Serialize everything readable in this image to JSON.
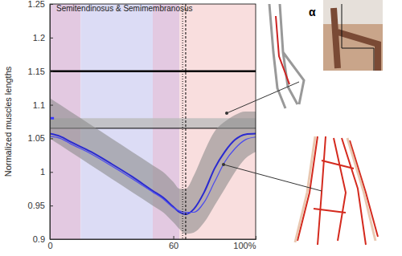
{
  "chart_data": {
    "type": "line",
    "title": "Semitendinosus & Semimembranosus",
    "y_label": "Normalized muscles lengths",
    "annotations": [
      "α"
    ],
    "x": [
      0,
      5,
      10,
      20,
      30,
      40,
      50,
      55,
      60,
      63,
      66,
      70,
      75,
      80,
      85,
      90,
      95,
      100
    ],
    "series": [
      {
        "type": "area",
        "color": "#8c8c8c",
        "values": [
          1.11,
          1.1,
          1.09,
          1.07,
          1.05,
          1.03,
          1.01,
          1.0,
          0.985,
          0.975,
          0.975,
          0.995,
          1.03,
          1.06,
          1.075,
          1.085,
          1.09,
          1.09
        ],
        "lower": [
          1.05,
          1.04,
          1.03,
          1.01,
          0.99,
          0.97,
          0.95,
          0.94,
          0.925,
          0.915,
          0.908,
          0.91,
          0.925,
          0.95,
          0.975,
          1.0,
          1.02,
          1.03
        ]
      },
      {
        "type": "line",
        "color": "#2a2ad0",
        "values": [
          1.057,
          1.053,
          1.045,
          1.03,
          1.012,
          0.993,
          0.972,
          0.962,
          0.948,
          0.94,
          0.937,
          0.945,
          0.97,
          1.005,
          1.03,
          1.048,
          1.056,
          1.057
        ]
      },
      {
        "type": "line",
        "color": "#4a4aee",
        "values": [
          1.053,
          1.05,
          1.042,
          1.027,
          1.009,
          0.99,
          0.97,
          0.96,
          0.947,
          0.942,
          0.94,
          0.94,
          0.955,
          0.985,
          1.015,
          1.035,
          1.048,
          1.052
        ]
      },
      {
        "type": "line",
        "color": "#3a3aff",
        "x": [
          0,
          2
        ],
        "values": [
          1.08,
          1.08
        ]
      }
    ],
    "bands": [
      {
        "from": 0,
        "to": 15,
        "color": "#e3c9e1"
      },
      {
        "from": 15,
        "to": 50,
        "color": "#dcdcf5"
      },
      {
        "from": 50,
        "to": 63,
        "color": "#e3c9e1"
      },
      {
        "from": 63,
        "to": 100,
        "color": "#f9dede"
      }
    ],
    "hband": {
      "from": 1.065,
      "to": 1.08,
      "color": "#bbbbbb"
    },
    "hlines": [
      {
        "y": 1.15,
        "color": "#000000"
      },
      {
        "y": 1.065,
        "color": "#000000"
      }
    ],
    "vlines": [
      {
        "x": 64.5,
        "line_style": "dotted"
      },
      {
        "x": 66,
        "line_style": "dashed"
      }
    ],
    "xlim": [
      0,
      100
    ],
    "ylim": [
      0.9,
      1.25
    ],
    "xticks": [
      0,
      60,
      {
        "value": 100,
        "label": "100%"
      }
    ],
    "yticks": [
      0.9,
      0.95,
      1,
      1.05,
      1.1,
      1.15,
      1.2,
      1.25
    ],
    "grid": false
  }
}
